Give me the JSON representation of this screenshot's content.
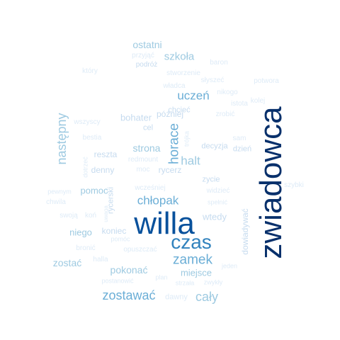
{
  "palette": {
    "background": "#ffffff",
    "c1": "#08306b",
    "c2": "#08519c",
    "c3": "#3182bd",
    "c4": "#6baed6",
    "c5": "#9ecae1",
    "c6": "#c6dbef",
    "c7": "#deebf7",
    "c8": "#eef4fb"
  },
  "words": [
    {
      "text": "zwiadowca",
      "weight": 1.0,
      "rotated": true,
      "color": "#08306b"
    },
    {
      "text": "willa",
      "weight": 0.8,
      "rotated": false,
      "color": "#08519c"
    },
    {
      "text": "czas",
      "weight": 0.52,
      "rotated": false,
      "color": "#3182bd"
    },
    {
      "text": "zamek",
      "weight": 0.36,
      "rotated": false,
      "color": "#6baed6"
    },
    {
      "text": "horace",
      "weight": 0.34,
      "rotated": true,
      "color": "#6baed6"
    },
    {
      "text": "zostawać",
      "weight": 0.34,
      "rotated": false,
      "color": "#6baed6"
    },
    {
      "text": "cały",
      "weight": 0.34,
      "rotated": false,
      "color": "#9ecae1"
    },
    {
      "text": "następny",
      "weight": 0.34,
      "rotated": true,
      "color": "#9ecae1"
    },
    {
      "text": "chłopak",
      "weight": 0.3,
      "rotated": false,
      "color": "#6baed6"
    },
    {
      "text": "uczeń",
      "weight": 0.3,
      "rotated": false,
      "color": "#6baed6"
    },
    {
      "text": "halt",
      "weight": 0.3,
      "rotated": false,
      "color": "#9ecae1"
    },
    {
      "text": "szkoła",
      "weight": 0.27,
      "rotated": false,
      "color": "#9ecae1"
    },
    {
      "text": "ostatni",
      "weight": 0.24,
      "rotated": false,
      "color": "#9ecae1"
    },
    {
      "text": "strona",
      "weight": 0.24,
      "rotated": false,
      "color": "#9ecae1"
    },
    {
      "text": "zostać",
      "weight": 0.24,
      "rotated": false,
      "color": "#9ecae1"
    },
    {
      "text": "pokonać",
      "weight": 0.24,
      "rotated": false,
      "color": "#9ecae1"
    },
    {
      "text": "miejsce",
      "weight": 0.22,
      "rotated": false,
      "color": "#9ecae1"
    },
    {
      "text": "niego",
      "weight": 0.22,
      "rotated": false,
      "color": "#9ecae1"
    },
    {
      "text": "pomoc",
      "weight": 0.22,
      "rotated": false,
      "color": "#9ecae1"
    },
    {
      "text": "wtedy",
      "weight": 0.22,
      "rotated": false,
      "color": "#c6dbef"
    },
    {
      "text": "bohater",
      "weight": 0.22,
      "rotated": false,
      "color": "#c6dbef"
    },
    {
      "text": "później",
      "weight": 0.2,
      "rotated": false,
      "color": "#c6dbef"
    },
    {
      "text": "koniec",
      "weight": 0.2,
      "rotated": false,
      "color": "#c6dbef"
    },
    {
      "text": "dowiadywać",
      "weight": 0.2,
      "rotated": true,
      "color": "#c6dbef"
    },
    {
      "text": "rycerz",
      "weight": 0.2,
      "rotated": false,
      "color": "#c6dbef"
    },
    {
      "text": "reszta",
      "weight": 0.2,
      "rotated": false,
      "color": "#c6dbef"
    },
    {
      "text": "denny",
      "weight": 0.2,
      "rotated": false,
      "color": "#c6dbef"
    },
    {
      "text": "rycerski",
      "weight": 0.18,
      "rotated": true,
      "color": "#c6dbef"
    },
    {
      "text": "zycie",
      "weight": 0.18,
      "rotated": false,
      "color": "#c6dbef"
    },
    {
      "text": "dzień",
      "weight": 0.18,
      "rotated": false,
      "color": "#c6dbef"
    },
    {
      "text": "decyzja",
      "weight": 0.18,
      "rotated": false,
      "color": "#c6dbef"
    },
    {
      "text": "chcieć",
      "weight": 0.18,
      "rotated": false,
      "color": "#c6dbef"
    },
    {
      "text": "cel",
      "weight": 0.18,
      "rotated": false,
      "color": "#c6dbef"
    },
    {
      "text": "podróż",
      "weight": 0.17,
      "rotated": false,
      "color": "#c6dbef"
    },
    {
      "text": "przyjąć",
      "weight": 0.16,
      "rotated": false,
      "color": "#deebf7"
    },
    {
      "text": "baron",
      "weight": 0.16,
      "rotated": false,
      "color": "#deebf7"
    },
    {
      "text": "który",
      "weight": 0.16,
      "rotated": false,
      "color": "#deebf7"
    },
    {
      "text": "stworzenie",
      "weight": 0.16,
      "rotated": false,
      "color": "#deebf7"
    },
    {
      "text": "słyszeć",
      "weight": 0.16,
      "rotated": false,
      "color": "#deebf7"
    },
    {
      "text": "potwora",
      "weight": 0.16,
      "rotated": false,
      "color": "#deebf7"
    },
    {
      "text": "władca",
      "weight": 0.16,
      "rotated": false,
      "color": "#deebf7"
    },
    {
      "text": "nikogo",
      "weight": 0.16,
      "rotated": false,
      "color": "#deebf7"
    },
    {
      "text": "istota",
      "weight": 0.16,
      "rotated": false,
      "color": "#deebf7"
    },
    {
      "text": "kolej",
      "weight": 0.16,
      "rotated": false,
      "color": "#deebf7"
    },
    {
      "text": "zrobić",
      "weight": 0.16,
      "rotated": false,
      "color": "#deebf7"
    },
    {
      "text": "wszyscy",
      "weight": 0.16,
      "rotated": false,
      "color": "#deebf7"
    },
    {
      "text": "trójka",
      "weight": 0.14,
      "rotated": true,
      "color": "#deebf7"
    },
    {
      "text": "sam",
      "weight": 0.16,
      "rotated": false,
      "color": "#deebf7"
    },
    {
      "text": "bestia",
      "weight": 0.16,
      "rotated": false,
      "color": "#deebf7"
    },
    {
      "text": "redmount",
      "weight": 0.16,
      "rotated": false,
      "color": "#deebf7"
    },
    {
      "text": "moc",
      "weight": 0.16,
      "rotated": false,
      "color": "#deebf7"
    },
    {
      "text": "dotrzeć",
      "weight": 0.14,
      "rotated": true,
      "color": "#deebf7"
    },
    {
      "text": "wcześniej",
      "weight": 0.16,
      "rotated": false,
      "color": "#deebf7"
    },
    {
      "text": "widzieć",
      "weight": 0.16,
      "rotated": false,
      "color": "#deebf7"
    },
    {
      "text": "szybki",
      "weight": 0.16,
      "rotated": false,
      "color": "#deebf7"
    },
    {
      "text": "pewnym",
      "weight": 0.15,
      "rotated": false,
      "color": "#deebf7"
    },
    {
      "text": "chwila",
      "weight": 0.16,
      "rotated": false,
      "color": "#deebf7"
    },
    {
      "text": "spełnić",
      "weight": 0.15,
      "rotated": false,
      "color": "#deebf7"
    },
    {
      "text": "swoją",
      "weight": 0.16,
      "rotated": false,
      "color": "#deebf7"
    },
    {
      "text": "koń",
      "weight": 0.16,
      "rotated": false,
      "color": "#deebf7"
    },
    {
      "text": "uwaga",
      "weight": 0.13,
      "rotated": true,
      "color": "#deebf7"
    },
    {
      "text": "pomóc",
      "weight": 0.15,
      "rotated": false,
      "color": "#deebf7"
    },
    {
      "text": "bronić",
      "weight": 0.16,
      "rotated": false,
      "color": "#deebf7"
    },
    {
      "text": "opuszczać",
      "weight": 0.16,
      "rotated": false,
      "color": "#deebf7"
    },
    {
      "text": "halla",
      "weight": 0.16,
      "rotated": false,
      "color": "#deebf7"
    },
    {
      "text": "jeden",
      "weight": 0.14,
      "rotated": false,
      "color": "#deebf7"
    },
    {
      "text": "plan",
      "weight": 0.15,
      "rotated": false,
      "color": "#deebf7"
    },
    {
      "text": "postanowić",
      "weight": 0.15,
      "rotated": false,
      "color": "#deebf7"
    },
    {
      "text": "strzała",
      "weight": 0.15,
      "rotated": false,
      "color": "#deebf7"
    },
    {
      "text": "zwykły",
      "weight": 0.15,
      "rotated": false,
      "color": "#deebf7"
    },
    {
      "text": "dawny",
      "weight": 0.17,
      "rotated": false,
      "color": "#deebf7"
    }
  ]
}
